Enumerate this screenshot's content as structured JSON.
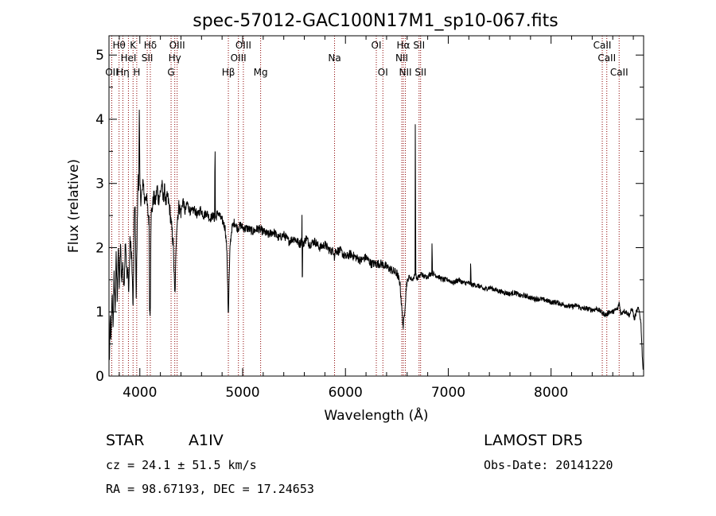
{
  "chart_data": {
    "type": "line",
    "title": "spec-57012-GAC100N17M1_sp10-067.fits",
    "xlabel": "Wavelength (Å)",
    "ylabel": "Flux (relative)",
    "xlim": [
      3700,
      8900
    ],
    "ylim": [
      0,
      5.3
    ],
    "x_ticks": [
      4000,
      5000,
      6000,
      7000,
      8000
    ],
    "y_ticks": [
      0,
      1,
      2,
      3,
      4,
      5
    ],
    "x_tick_labels": [
      "4000",
      "5000",
      "6000",
      "7000",
      "8000"
    ],
    "y_tick_labels": [
      "0",
      "1",
      "2",
      "3",
      "4",
      "5"
    ],
    "series_color": "#000000",
    "line_marker_color": "#8b0000",
    "spectrum_anchors": [
      [
        3705,
        0.3
      ],
      [
        3712,
        0.9
      ],
      [
        3720,
        0.5
      ],
      [
        3730,
        1.3
      ],
      [
        3740,
        0.8
      ],
      [
        3750,
        1.6
      ],
      [
        3760,
        1.0
      ],
      [
        3770,
        1.9
      ],
      [
        3780,
        1.2
      ],
      [
        3790,
        2.0
      ],
      [
        3800,
        1.4
      ],
      [
        3812,
        2.05
      ],
      [
        3822,
        1.5
      ],
      [
        3835,
        1.8
      ],
      [
        3845,
        1.3
      ],
      [
        3860,
        2.2
      ],
      [
        3875,
        1.5
      ],
      [
        3888,
        1.7
      ],
      [
        3890,
        1.2
      ],
      [
        3905,
        2.1
      ],
      [
        3920,
        1.9
      ],
      [
        3935,
        1.0
      ],
      [
        3945,
        2.5
      ],
      [
        3955,
        2.6
      ],
      [
        3965,
        1.2
      ],
      [
        3975,
        2.4
      ],
      [
        3985,
        3.2
      ],
      [
        3990,
        2.9
      ],
      [
        3995,
        4.2
      ],
      [
        4000,
        3.0
      ],
      [
        4010,
        2.75
      ],
      [
        4025,
        2.9
      ],
      [
        4035,
        3.05
      ],
      [
        4045,
        2.7
      ],
      [
        4060,
        2.85
      ],
      [
        4075,
        2.6
      ],
      [
        4090,
        2.4
      ],
      [
        4095,
        1.0
      ],
      [
        4101,
        0.95
      ],
      [
        4108,
        2.5
      ],
      [
        4120,
        2.6
      ],
      [
        4135,
        2.8
      ],
      [
        4150,
        2.7
      ],
      [
        4170,
        2.95
      ],
      [
        4180,
        2.75
      ],
      [
        4200,
        2.85
      ],
      [
        4215,
        3.0
      ],
      [
        4225,
        2.75
      ],
      [
        4240,
        2.9
      ],
      [
        4255,
        2.7
      ],
      [
        4270,
        2.8
      ],
      [
        4290,
        2.6
      ],
      [
        4310,
        2.3
      ],
      [
        4325,
        2.05
      ],
      [
        4335,
        1.5
      ],
      [
        4341,
        1.2
      ],
      [
        4347,
        1.6
      ],
      [
        4358,
        2.35
      ],
      [
        4380,
        2.65
      ],
      [
        4400,
        2.55
      ],
      [
        4420,
        2.75
      ],
      [
        4440,
        2.55
      ],
      [
        4460,
        2.7
      ],
      [
        4480,
        2.6
      ],
      [
        4500,
        2.55
      ],
      [
        4530,
        2.6
      ],
      [
        4560,
        2.5
      ],
      [
        4590,
        2.6
      ],
      [
        4620,
        2.5
      ],
      [
        4650,
        2.55
      ],
      [
        4680,
        2.45
      ],
      [
        4710,
        2.5
      ],
      [
        4728,
        2.45
      ],
      [
        4731,
        3.85
      ],
      [
        4735,
        2.45
      ],
      [
        4760,
        2.55
      ],
      [
        4790,
        2.45
      ],
      [
        4810,
        2.4
      ],
      [
        4830,
        2.3
      ],
      [
        4845,
        2.0
      ],
      [
        4855,
        1.4
      ],
      [
        4861,
        0.88
      ],
      [
        4867,
        1.4
      ],
      [
        4878,
        2.05
      ],
      [
        4895,
        2.3
      ],
      [
        4920,
        2.4
      ],
      [
        4950,
        2.3
      ],
      [
        4980,
        2.35
      ],
      [
        5010,
        2.3
      ],
      [
        5050,
        2.3
      ],
      [
        5100,
        2.25
      ],
      [
        5150,
        2.3
      ],
      [
        5200,
        2.25
      ],
      [
        5250,
        2.2
      ],
      [
        5300,
        2.25
      ],
      [
        5350,
        2.15
      ],
      [
        5400,
        2.2
      ],
      [
        5450,
        2.1
      ],
      [
        5500,
        2.15
      ],
      [
        5560,
        2.05
      ],
      [
        5575,
        2.15
      ],
      [
        5577,
        2.5
      ],
      [
        5580,
        1.3
      ],
      [
        5585,
        2.05
      ],
      [
        5620,
        2.15
      ],
      [
        5650,
        2.05
      ],
      [
        5700,
        2.1
      ],
      [
        5750,
        2.0
      ],
      [
        5800,
        2.05
      ],
      [
        5850,
        1.95
      ],
      [
        5890,
        1.95
      ],
      [
        5893,
        1.8
      ],
      [
        5900,
        1.95
      ],
      [
        5950,
        1.95
      ],
      [
        6000,
        1.85
      ],
      [
        6050,
        1.9
      ],
      [
        6100,
        1.85
      ],
      [
        6150,
        1.8
      ],
      [
        6200,
        1.85
      ],
      [
        6250,
        1.75
      ],
      [
        6300,
        1.75
      ],
      [
        6350,
        1.75
      ],
      [
        6400,
        1.7
      ],
      [
        6450,
        1.65
      ],
      [
        6500,
        1.6
      ],
      [
        6530,
        1.45
      ],
      [
        6550,
        1.0
      ],
      [
        6563,
        0.75
      ],
      [
        6575,
        1.0
      ],
      [
        6595,
        1.45
      ],
      [
        6620,
        1.55
      ],
      [
        6650,
        1.5
      ],
      [
        6670,
        1.55
      ],
      [
        6678,
        1.6
      ],
      [
        6680,
        4.75
      ],
      [
        6683,
        1.6
      ],
      [
        6695,
        1.5
      ],
      [
        6710,
        1.55
      ],
      [
        6720,
        1.55
      ],
      [
        6740,
        1.6
      ],
      [
        6760,
        1.55
      ],
      [
        6800,
        1.55
      ],
      [
        6830,
        1.6
      ],
      [
        6840,
        1.6
      ],
      [
        6842,
        2.1
      ],
      [
        6846,
        1.6
      ],
      [
        6900,
        1.55
      ],
      [
        6950,
        1.5
      ],
      [
        7000,
        1.5
      ],
      [
        7050,
        1.45
      ],
      [
        7100,
        1.5
      ],
      [
        7150,
        1.45
      ],
      [
        7200,
        1.45
      ],
      [
        7215,
        1.42
      ],
      [
        7218,
        1.95
      ],
      [
        7221,
        1.42
      ],
      [
        7260,
        1.42
      ],
      [
        7300,
        1.4
      ],
      [
        7350,
        1.35
      ],
      [
        7400,
        1.38
      ],
      [
        7450,
        1.35
      ],
      [
        7500,
        1.32
      ],
      [
        7550,
        1.3
      ],
      [
        7600,
        1.28
      ],
      [
        7650,
        1.3
      ],
      [
        7700,
        1.25
      ],
      [
        7750,
        1.25
      ],
      [
        7800,
        1.22
      ],
      [
        7850,
        1.2
      ],
      [
        7900,
        1.2
      ],
      [
        7950,
        1.18
      ],
      [
        8000,
        1.15
      ],
      [
        8050,
        1.15
      ],
      [
        8100,
        1.12
      ],
      [
        8150,
        1.1
      ],
      [
        8200,
        1.08
      ],
      [
        8250,
        1.1
      ],
      [
        8300,
        1.05
      ],
      [
        8350,
        1.05
      ],
      [
        8400,
        1.03
      ],
      [
        8450,
        1.05
      ],
      [
        8500,
        0.98
      ],
      [
        8542,
        0.95
      ],
      [
        8560,
        1.0
      ],
      [
        8600,
        1.0
      ],
      [
        8650,
        1.05
      ],
      [
        8662,
        1.15
      ],
      [
        8680,
        0.95
      ],
      [
        8700,
        1.02
      ],
      [
        8730,
        1.0
      ],
      [
        8760,
        0.95
      ],
      [
        8790,
        1.05
      ],
      [
        8810,
        0.88
      ],
      [
        8830,
        1.0
      ],
      [
        8845,
        1.05
      ],
      [
        8860,
        1.0
      ],
      [
        8875,
        0.8
      ],
      [
        8885,
        0.4
      ],
      [
        8895,
        0.1
      ]
    ],
    "spectral_lines": [
      {
        "wl": 3727,
        "label": "OII",
        "row": 3
      },
      {
        "wl": 3798,
        "label": "Hθ",
        "row": 1
      },
      {
        "wl": 3835,
        "label": "Hη",
        "row": 3
      },
      {
        "wl": 3889,
        "label": "HeI",
        "row": 2
      },
      {
        "wl": 3934,
        "label": "K",
        "row": 1
      },
      {
        "wl": 3970,
        "label": "H",
        "row": 3
      },
      {
        "wl": 4072,
        "label": "SII",
        "row": 2
      },
      {
        "wl": 4102,
        "label": "Hδ",
        "row": 1
      },
      {
        "wl": 4304,
        "label": "G",
        "row": 3
      },
      {
        "wl": 4340,
        "label": "Hγ",
        "row": 2
      },
      {
        "wl": 4363,
        "label": "OIII",
        "row": 1
      },
      {
        "wl": 4861,
        "label": "Hβ",
        "row": 3
      },
      {
        "wl": 4959,
        "label": "OIII",
        "row": 2
      },
      {
        "wl": 5007,
        "label": "OIII",
        "row": 1
      },
      {
        "wl": 5175,
        "label": "Mg",
        "row": 3
      },
      {
        "wl": 5894,
        "label": "Na",
        "row": 2
      },
      {
        "wl": 6300,
        "label": "OI",
        "row": 1
      },
      {
        "wl": 6364,
        "label": "OI",
        "row": 3
      },
      {
        "wl": 6548,
        "label": "NII",
        "row": 2
      },
      {
        "wl": 6563,
        "label": "Hα",
        "row": 1
      },
      {
        "wl": 6583,
        "label": "NII",
        "row": 3
      },
      {
        "wl": 6716,
        "label": "SII",
        "row": 1
      },
      {
        "wl": 6731,
        "label": "SII",
        "row": 3
      },
      {
        "wl": 8498,
        "label": "CaII",
        "row": 1
      },
      {
        "wl": 8542,
        "label": "CaII",
        "row": 2
      },
      {
        "wl": 8662,
        "label": "CaII",
        "row": 3
      }
    ]
  },
  "info": {
    "object_class": "STAR",
    "subclass": "A1IV",
    "survey": "LAMOST DR5",
    "redshift": "cz = 24.1 ± 51.5 km/s",
    "obs_date": "Obs-Date: 20141220",
    "coords": "RA =  98.67193, DEC =  17.24653"
  }
}
